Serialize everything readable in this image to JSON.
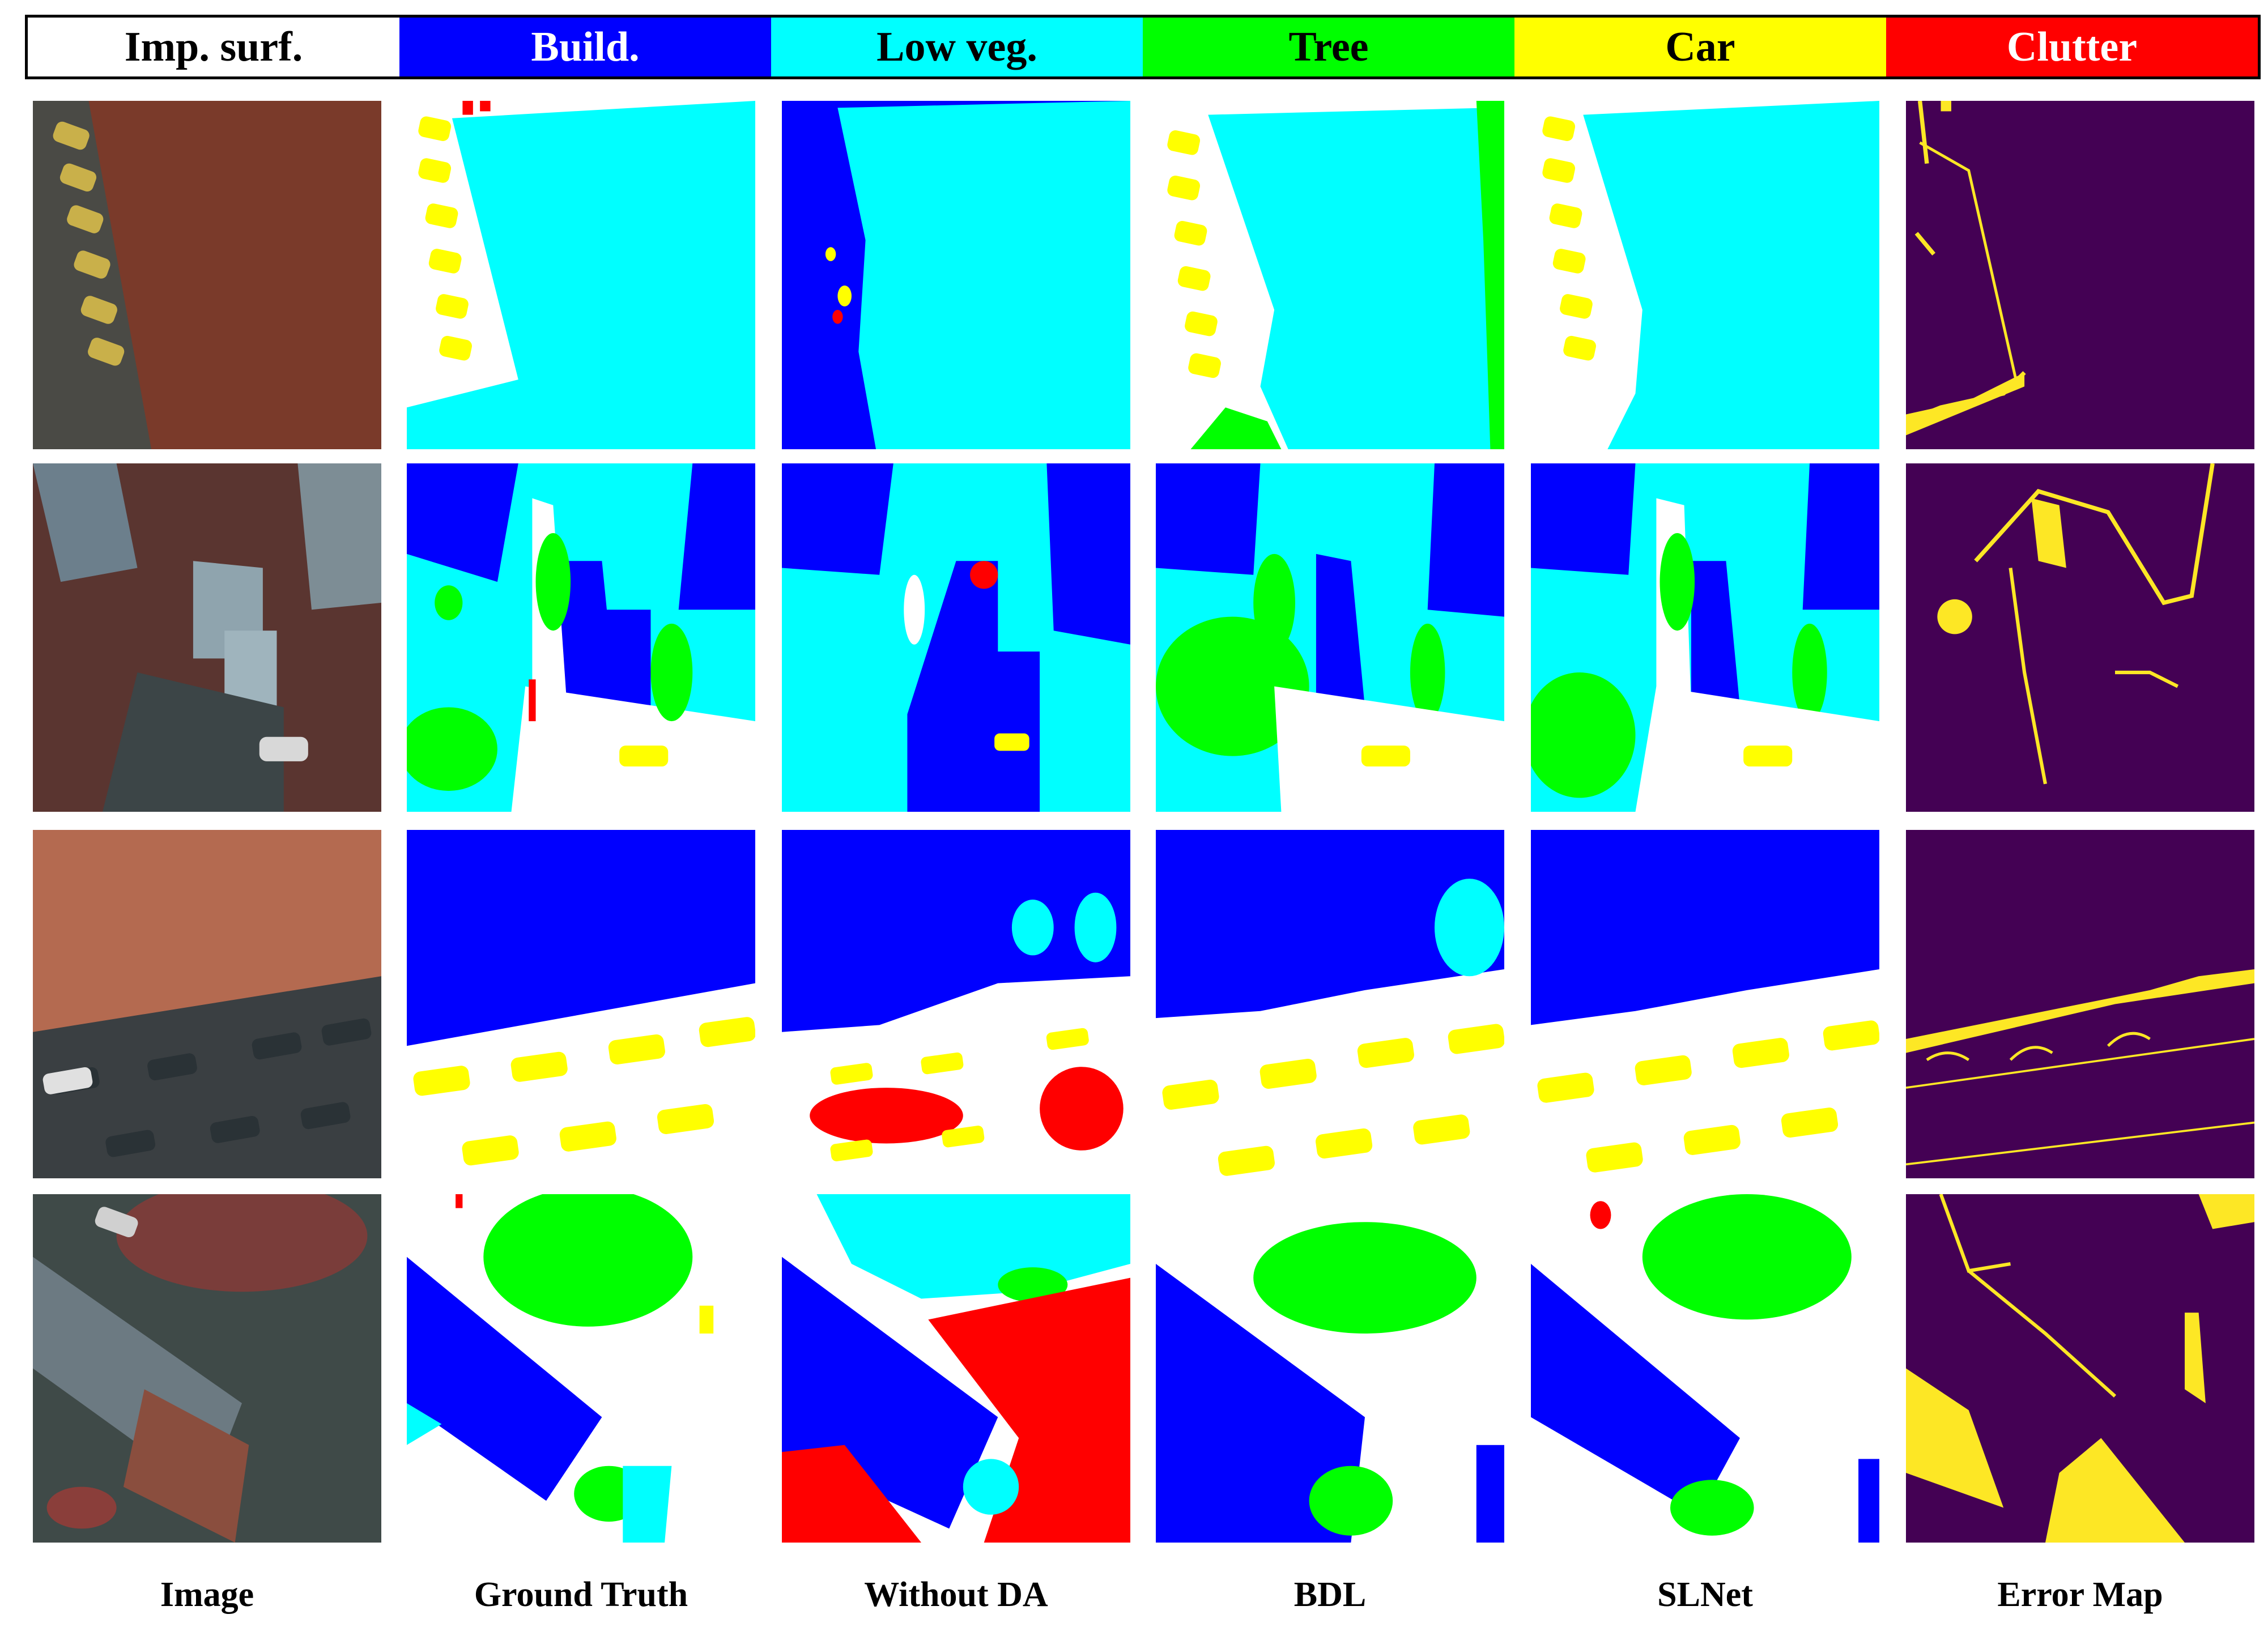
{
  "legend": [
    {
      "label": "Imp. surf.",
      "bg": "#ffffff",
      "fg": "#000000",
      "name": "legend-impervious-surface"
    },
    {
      "label": "Build.",
      "bg": "#0000ff",
      "fg": "#ffffff",
      "name": "legend-building"
    },
    {
      "label": "Low veg.",
      "bg": "#00ffff",
      "fg": "#000000",
      "name": "legend-low-vegetation"
    },
    {
      "label": "Tree",
      "bg": "#00ff00",
      "fg": "#000000",
      "name": "legend-tree"
    },
    {
      "label": "Car",
      "bg": "#ffff00",
      "fg": "#000000",
      "name": "legend-car"
    },
    {
      "label": "Clutter",
      "bg": "#ff0000",
      "fg": "#ffffff",
      "name": "legend-clutter"
    }
  ],
  "columns": [
    "Image",
    "Ground Truth",
    "Without DA",
    "BDL",
    "SLNet",
    "Error Map"
  ],
  "colors": {
    "impervious": "#ffffff",
    "building": "#0000ff",
    "low_veg": "#00ffff",
    "tree": "#00ff00",
    "car": "#ffff00",
    "clutter": "#ff0000",
    "error_bg": "#440154",
    "error_fg": "#fde725"
  }
}
